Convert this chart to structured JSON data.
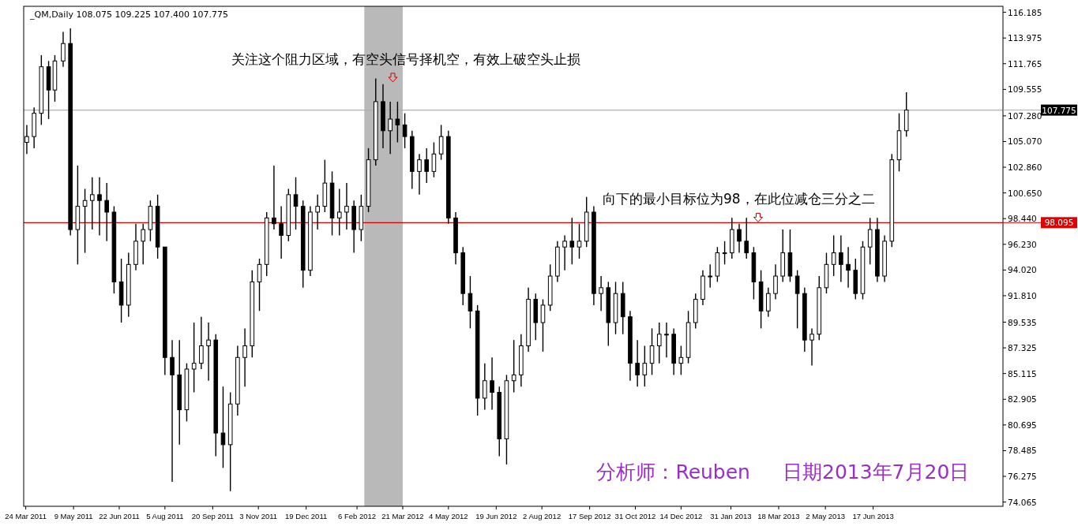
{
  "chart_data": {
    "type": "candlestick",
    "title": "_QM,Daily  108.075 109.225 107.400 107.775",
    "x": [
      "2011-03-25",
      "2011-04-01",
      "2011-04-08",
      "2011-04-15",
      "2011-04-21",
      "2011-04-29",
      "2011-05-06",
      "2011-05-13",
      "2011-05-20",
      "2011-05-27",
      "2011-06-03",
      "2011-06-10",
      "2011-06-17",
      "2011-06-24",
      "2011-07-01",
      "2011-07-08",
      "2011-07-15",
      "2011-07-22",
      "2011-07-29",
      "2011-08-05",
      "2011-08-12",
      "2011-08-19",
      "2011-08-26",
      "2011-09-02",
      "2011-09-09",
      "2011-09-16",
      "2011-09-23",
      "2011-09-30",
      "2011-10-07",
      "2011-10-14",
      "2011-10-21",
      "2011-10-28",
      "2011-11-04",
      "2011-11-11",
      "2011-11-18",
      "2011-11-25",
      "2011-12-02",
      "2011-12-09",
      "2011-12-16",
      "2011-12-23",
      "2011-12-30",
      "2012-01-06",
      "2012-01-13",
      "2012-01-20",
      "2012-01-27",
      "2012-02-03",
      "2012-02-10",
      "2012-02-17",
      "2012-02-24",
      "2012-03-02",
      "2012-03-09",
      "2012-03-16",
      "2012-03-23",
      "2012-03-30",
      "2012-04-06",
      "2012-04-13",
      "2012-04-20",
      "2012-04-27",
      "2012-05-04",
      "2012-05-11",
      "2012-05-18",
      "2012-05-25",
      "2012-06-01",
      "2012-06-08",
      "2012-06-15",
      "2012-06-22",
      "2012-06-29",
      "2012-07-06",
      "2012-07-13",
      "2012-07-20",
      "2012-07-27",
      "2012-08-03",
      "2012-08-10",
      "2012-08-17",
      "2012-08-24",
      "2012-08-31",
      "2012-09-07",
      "2012-09-14",
      "2012-09-21",
      "2012-09-28",
      "2012-10-05",
      "2012-10-12",
      "2012-10-19",
      "2012-10-26",
      "2012-11-02",
      "2012-11-09",
      "2012-11-16",
      "2012-11-23",
      "2012-11-30",
      "2012-12-07",
      "2012-12-14",
      "2012-12-21",
      "2012-12-28",
      "2013-01-04",
      "2013-01-11",
      "2013-01-18",
      "2013-01-25",
      "2013-02-01",
      "2013-02-08",
      "2013-02-15",
      "2013-02-22",
      "2013-03-01",
      "2013-03-08",
      "2013-03-15",
      "2013-03-22",
      "2013-03-29",
      "2013-04-05",
      "2013-04-12",
      "2013-04-19",
      "2013-04-26",
      "2013-05-03",
      "2013-05-10",
      "2013-05-17",
      "2013-05-24",
      "2013-05-31",
      "2013-06-07",
      "2013-06-14",
      "2013-06-21",
      "2013-06-28",
      "2013-07-05",
      "2013-07-12",
      "2013-07-19"
    ],
    "ohlc": [
      [
        105,
        106.5,
        104,
        105.5
      ],
      [
        105.5,
        108,
        104.5,
        107.5
      ],
      [
        107.5,
        112.5,
        106.5,
        111.5
      ],
      [
        111.5,
        112,
        107,
        109.5
      ],
      [
        109.5,
        112.5,
        108.5,
        112
      ],
      [
        112,
        114.5,
        111.5,
        113.5
      ],
      [
        113.5,
        114.8,
        97,
        97.5
      ],
      [
        97.5,
        103,
        94.5,
        99.5
      ],
      [
        99.5,
        101,
        95.5,
        100
      ],
      [
        100,
        102,
        97.5,
        100.5
      ],
      [
        100.5,
        102,
        97,
        100
      ],
      [
        100,
        101.5,
        96.5,
        99
      ],
      [
        99,
        99.5,
        92,
        93
      ],
      [
        93,
        95,
        89.5,
        91
      ],
      [
        91,
        95.5,
        90,
        94.5
      ],
      [
        94.5,
        98,
        94,
        96.5
      ],
      [
        96.5,
        98,
        94.5,
        97.5
      ],
      [
        97.5,
        100,
        96.5,
        99.5
      ],
      [
        99.5,
        100.5,
        95,
        96
      ],
      [
        96,
        96,
        85,
        86.5
      ],
      [
        86.5,
        88,
        75.8,
        85
      ],
      [
        85,
        88,
        79,
        82
      ],
      [
        82,
        86,
        81,
        85.5
      ],
      [
        85.5,
        89.5,
        83.5,
        86
      ],
      [
        86,
        90,
        85.5,
        87.5
      ],
      [
        87.5,
        89.5,
        84.5,
        88
      ],
      [
        88,
        88.5,
        78,
        80
      ],
      [
        80,
        84,
        77,
        79
      ],
      [
        79,
        83.5,
        75,
        82.5
      ],
      [
        82.5,
        87.5,
        81.5,
        86.5
      ],
      [
        86.5,
        89,
        84,
        87.5
      ],
      [
        87.5,
        94,
        86.5,
        93
      ],
      [
        93,
        95,
        90.5,
        94.5
      ],
      [
        94.5,
        99,
        93.5,
        98.5
      ],
      [
        98.5,
        103,
        97.5,
        98
      ],
      [
        98,
        99.5,
        95,
        97
      ],
      [
        97,
        101,
        96.5,
        100.5
      ],
      [
        100.5,
        102,
        97.5,
        99.5
      ],
      [
        99.5,
        100,
        92.5,
        94
      ],
      [
        94,
        99.5,
        93.5,
        99
      ],
      [
        99,
        100.5,
        97.5,
        99.5
      ],
      [
        99.5,
        103.5,
        99,
        101.5
      ],
      [
        101.5,
        102.5,
        97,
        98.5
      ],
      [
        98.5,
        101,
        97,
        99
      ],
      [
        99,
        101.5,
        97.5,
        99.5
      ],
      [
        99.5,
        100,
        95.5,
        97.5
      ],
      [
        97.5,
        100.5,
        96.5,
        99.5
      ],
      [
        99.5,
        104.5,
        99,
        103.5
      ],
      [
        103.5,
        110.5,
        103,
        108.5
      ],
      [
        108.5,
        110,
        104.5,
        106
      ],
      [
        106,
        108.5,
        104,
        107
      ],
      [
        107,
        108.5,
        105,
        106.5
      ],
      [
        106.5,
        107.5,
        104.5,
        105.5
      ],
      [
        105.5,
        106,
        101,
        102.5
      ],
      [
        102.5,
        104,
        100.5,
        103.5
      ],
      [
        103.5,
        104.5,
        101.5,
        102.5
      ],
      [
        102.5,
        105,
        102,
        104
      ],
      [
        104,
        106.5,
        103.5,
        105.5
      ],
      [
        105.5,
        106,
        98,
        98.5
      ],
      [
        98.5,
        99,
        94.5,
        95.5
      ],
      [
        95.5,
        96,
        91,
        92
      ],
      [
        92,
        93.5,
        89,
        90.5
      ],
      [
        90.5,
        91,
        81.5,
        83
      ],
      [
        83,
        86,
        82,
        84.5
      ],
      [
        84.5,
        86.5,
        82,
        83.5
      ],
      [
        83.5,
        84,
        78,
        79.5
      ],
      [
        79.5,
        85,
        77.3,
        84.5
      ],
      [
        84.5,
        88,
        83.5,
        85
      ],
      [
        85,
        88.5,
        84,
        87.5
      ],
      [
        87.5,
        92.5,
        87,
        91.5
      ],
      [
        91.5,
        92,
        88,
        89.5
      ],
      [
        89.5,
        91.5,
        87,
        91
      ],
      [
        91,
        94.5,
        90.5,
        93.5
      ],
      [
        93.5,
        96.5,
        93,
        96
      ],
      [
        96,
        97,
        94,
        96.5
      ],
      [
        96.5,
        98.5,
        94.5,
        96
      ],
      [
        96,
        98,
        95,
        96.5
      ],
      [
        96.5,
        100.3,
        96,
        99
      ],
      [
        99,
        99.5,
        91,
        92
      ],
      [
        92,
        93.5,
        90.5,
        92.5
      ],
      [
        92.5,
        93,
        87.5,
        89.5
      ],
      [
        89.5,
        93,
        88.5,
        92
      ],
      [
        92,
        93,
        88.5,
        90
      ],
      [
        90,
        90.5,
        84.5,
        86
      ],
      [
        86,
        88,
        84,
        85
      ],
      [
        85,
        87.5,
        84,
        86
      ],
      [
        86,
        89,
        85,
        87.5
      ],
      [
        87.5,
        89.5,
        86,
        88.5
      ],
      [
        88.5,
        89.5,
        86.5,
        88.5
      ],
      [
        88.5,
        89,
        85,
        86
      ],
      [
        86,
        87.5,
        85,
        86.5
      ],
      [
        86.5,
        90.5,
        86,
        89.5
      ],
      [
        89.5,
        92,
        89,
        91.5
      ],
      [
        91.5,
        94,
        91,
        93.5
      ],
      [
        93.5,
        94.5,
        92.5,
        93.5
      ],
      [
        93.5,
        96,
        93,
        95.5
      ],
      [
        95.5,
        96.5,
        94.5,
        95.5
      ],
      [
        95.5,
        98.5,
        95,
        97.5
      ],
      [
        97.5,
        98,
        95.5,
        96.5
      ],
      [
        96.5,
        98.5,
        95,
        95.5
      ],
      [
        95.5,
        96,
        91.5,
        93
      ],
      [
        93,
        94,
        89,
        90.5
      ],
      [
        90.5,
        92.5,
        90,
        92
      ],
      [
        92,
        94.5,
        91.5,
        93.5
      ],
      [
        93.5,
        97.5,
        93,
        95.5
      ],
      [
        95.5,
        97.5,
        93,
        93.5
      ],
      [
        93.5,
        94,
        89,
        92
      ],
      [
        92,
        92.5,
        87,
        88
      ],
      [
        88,
        89,
        85.8,
        88.5
      ],
      [
        88.5,
        93.5,
        88,
        92.5
      ],
      [
        92.5,
        95.5,
        92,
        94.5
      ],
      [
        94.5,
        97,
        93.5,
        95.5
      ],
      [
        95.5,
        97,
        93,
        94.5
      ],
      [
        94.5,
        96,
        92.5,
        94
      ],
      [
        94,
        95,
        91.5,
        92
      ],
      [
        92,
        96.5,
        91.5,
        96
      ],
      [
        96,
        98.5,
        94.5,
        97.5
      ],
      [
        97.5,
        98.5,
        93,
        93.5
      ],
      [
        93.5,
        97,
        93,
        96.5
      ],
      [
        96.5,
        104,
        96,
        103.5
      ],
      [
        103.5,
        107.5,
        102.5,
        106
      ],
      [
        106,
        109.3,
        105.5,
        107.775
      ]
    ],
    "xlim": [
      "2011-03-22",
      "2013-10-20"
    ],
    "xticks": [
      {
        "value": "2011-03-24",
        "label": "24 Mar 2011"
      },
      {
        "value": "2011-05-09",
        "label": "9 May 2011"
      },
      {
        "value": "2011-06-22",
        "label": "22 Jun 2011"
      },
      {
        "value": "2011-08-05",
        "label": "5 Aug 2011"
      },
      {
        "value": "2011-09-20",
        "label": "20 Sep 2011"
      },
      {
        "value": "2011-11-03",
        "label": "3 Nov 2011"
      },
      {
        "value": "2011-12-19",
        "label": "19 Dec 2011"
      },
      {
        "value": "2012-02-06",
        "label": "6 Feb 2012"
      },
      {
        "value": "2012-03-21",
        "label": "21 Mar 2012"
      },
      {
        "value": "2012-05-04",
        "label": "4 May 2012"
      },
      {
        "value": "2012-06-19",
        "label": "19 Jun 2012"
      },
      {
        "value": "2012-08-02",
        "label": "2 Aug 2012"
      },
      {
        "value": "2012-09-17",
        "label": "17 Sep 2012"
      },
      {
        "value": "2012-10-31",
        "label": "31 Oct 2012"
      },
      {
        "value": "2012-12-14",
        "label": "14 Dec 2012"
      },
      {
        "value": "2013-01-31",
        "label": "31 Jan 2013"
      },
      {
        "value": "2013-03-18",
        "label": "18 Mar 2013"
      },
      {
        "value": "2013-05-02",
        "label": "2 May 2013"
      },
      {
        "value": "2013-06-17",
        "label": "17 Jun 2013"
      }
    ],
    "ylim": [
      73.7,
      116.7
    ],
    "yticks": [
      {
        "value": 116.185,
        "label": "116.185"
      },
      {
        "value": 113.975,
        "label": "113.975"
      },
      {
        "value": 111.765,
        "label": "111.765"
      },
      {
        "value": 109.555,
        "label": "109.555"
      },
      {
        "value": 107.28,
        "label": "107.280"
      },
      {
        "value": 105.07,
        "label": "105.070"
      },
      {
        "value": 102.86,
        "label": "102.860"
      },
      {
        "value": 100.65,
        "label": "100.650"
      },
      {
        "value": 98.44,
        "label": "98.440"
      },
      {
        "value": 96.23,
        "label": "96.230"
      },
      {
        "value": 94.02,
        "label": "94.020"
      },
      {
        "value": 91.81,
        "label": "91.810"
      },
      {
        "value": 89.535,
        "label": "89.535"
      },
      {
        "value": 87.325,
        "label": "87.325"
      },
      {
        "value": 85.115,
        "label": "85.115"
      },
      {
        "value": 82.905,
        "label": "82.905"
      },
      {
        "value": 80.695,
        "label": "80.695"
      },
      {
        "value": 78.485,
        "label": "78.485"
      },
      {
        "value": 76.275,
        "label": "76.275"
      },
      {
        "value": 74.065,
        "label": "74.065"
      }
    ],
    "ref_lines": [
      {
        "axis": "y",
        "value": 107.775,
        "label": "107.775",
        "color": "#b0b0b0"
      },
      {
        "axis": "y",
        "value": 98.095,
        "label": "98.095",
        "color": "#e00000"
      }
    ],
    "bands": [
      {
        "axis": "x",
        "from": "2012-02-13",
        "to": "2012-03-21",
        "color": "#808080"
      }
    ],
    "annotations": [
      "关注这个阻力区域，有空头信号择机空，有效上破空头止损",
      "向下的最小目标位为98，在此位减仓三分之二",
      "分析师：Reuben",
      "日期2013年7月20日"
    ]
  }
}
